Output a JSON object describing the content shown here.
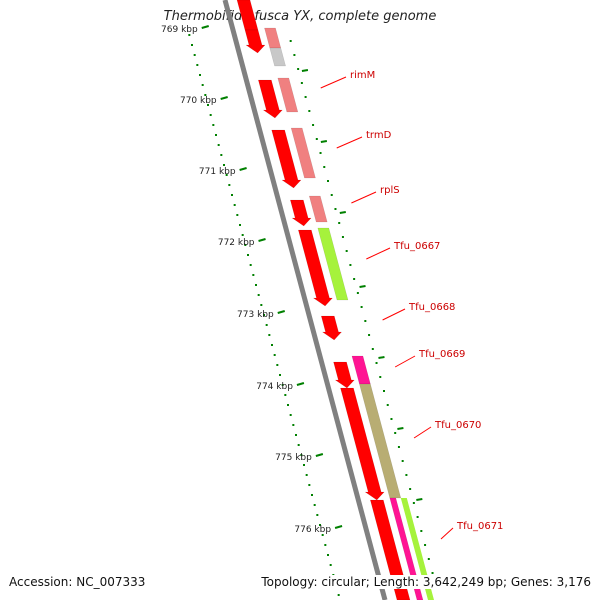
{
  "title": "Thermobifida fusca YX, complete genome",
  "footer": {
    "accession": "Accession: NC_007333",
    "topology": "Topology: circular; Length: 3,642,249 bp; Genes: 3,176"
  },
  "scale": {
    "ticks": [
      "769 kbp",
      "770 kbp",
      "771 kbp",
      "772 kbp",
      "773 kbp",
      "774 kbp",
      "775 kbp",
      "776 kbp"
    ]
  },
  "gene_labels": [
    "rimM",
    "trmD",
    "rplS",
    "Tfu_0667",
    "Tfu_0668",
    "Tfu_0669",
    "Tfu_0670",
    "Tfu_0671"
  ],
  "colors": {
    "cds": "#ff0000",
    "cds_light": "#f08080",
    "gray": "#c8c8c8",
    "green": "#a6f23c",
    "pink": "#ff1493",
    "khaki": "#b8ad73",
    "tick": "#008000",
    "backbone": "#808080"
  }
}
